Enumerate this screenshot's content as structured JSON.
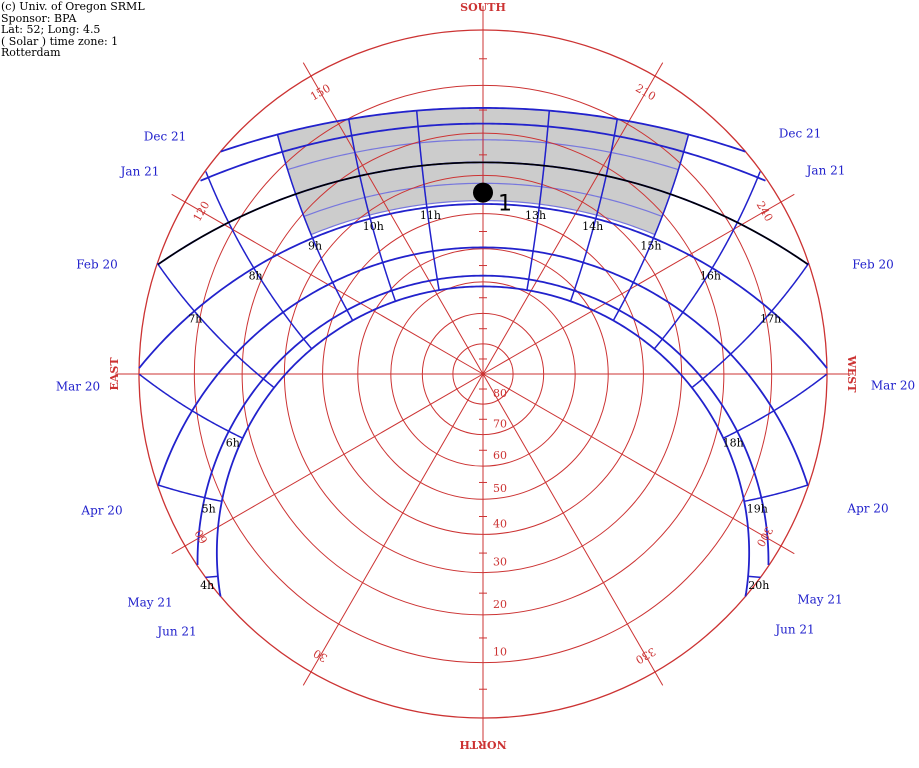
{
  "header": {
    "line1": "(c) Univ. of Oregon SRML",
    "line2": "Sponsor: BPA",
    "line3": "Lat: 52; Long: 4.5",
    "line4": "( Solar ) time zone: 1",
    "line5": "Rotterdam"
  },
  "colors": {
    "grid": "#cc3333",
    "sunpath": "#2222cc",
    "hourline": "#2222cc",
    "reference": "#000000",
    "shade_fill": "#cccccc",
    "shade_grid": "#7777dd"
  },
  "chart_data": {
    "type": "sun-path (polar stereographic)",
    "latitude": 52,
    "longitude": 4.5,
    "compass_labels": {
      "south": "SOUTH",
      "north": "NORTH",
      "east": "EAST",
      "west": "WEST"
    },
    "azimuth_labels": [
      {
        "az": 30,
        "label": "30"
      },
      {
        "az": 60,
        "label": "60"
      },
      {
        "az": 120,
        "label": "120"
      },
      {
        "az": 150,
        "label": "150"
      },
      {
        "az": 210,
        "label": "210"
      },
      {
        "az": 240,
        "label": "240"
      },
      {
        "az": 300,
        "label": "300"
      },
      {
        "az": 330,
        "label": "330"
      }
    ],
    "altitude_rings": [
      {
        "alt": 80,
        "label": "80"
      },
      {
        "alt": 70,
        "label": "70"
      },
      {
        "alt": 60,
        "label": "60"
      },
      {
        "alt": 50,
        "label": "50"
      },
      {
        "alt": 40,
        "label": "40"
      },
      {
        "alt": 30,
        "label": "30"
      },
      {
        "alt": 20,
        "label": "20"
      },
      {
        "alt": 10,
        "label": "10"
      }
    ],
    "date_curves": [
      {
        "label": "Dec 21",
        "decl": -23.44
      },
      {
        "label": "Jan 21",
        "decl": -20.1
      },
      {
        "label": "Feb 20",
        "decl": -11.2
      },
      {
        "label": "Mar 20",
        "decl": -0.6
      },
      {
        "label": "Apr 20",
        "decl": 11.6
      },
      {
        "label": "May 21",
        "decl": 20.1
      },
      {
        "label": "Jun 21",
        "decl": 23.44
      }
    ],
    "reference_curve_decl": -11.2,
    "hour_lines": [
      {
        "hour": 4,
        "label": "4h"
      },
      {
        "hour": 5,
        "label": "5h"
      },
      {
        "hour": 6,
        "label": "6h"
      },
      {
        "hour": 7,
        "label": "7h"
      },
      {
        "hour": 8,
        "label": "8h"
      },
      {
        "hour": 9,
        "label": "9h"
      },
      {
        "hour": 10,
        "label": "10h"
      },
      {
        "hour": 11,
        "label": "11h"
      },
      {
        "hour": 13,
        "label": "13h"
      },
      {
        "hour": 14,
        "label": "14h"
      },
      {
        "hour": 15,
        "label": "15h"
      },
      {
        "hour": 16,
        "label": "16h"
      },
      {
        "hour": 17,
        "label": "17h"
      },
      {
        "hour": 18,
        "label": "18h"
      },
      {
        "hour": 19,
        "label": "19h"
      },
      {
        "hour": 20,
        "label": "20h"
      }
    ],
    "shaded_region": {
      "decl_from": -23.44,
      "decl_to": -1.5,
      "hour_from": 9,
      "hour_to": 15
    },
    "marker": {
      "decl": -1.5,
      "hour": 12,
      "label": "1"
    }
  }
}
